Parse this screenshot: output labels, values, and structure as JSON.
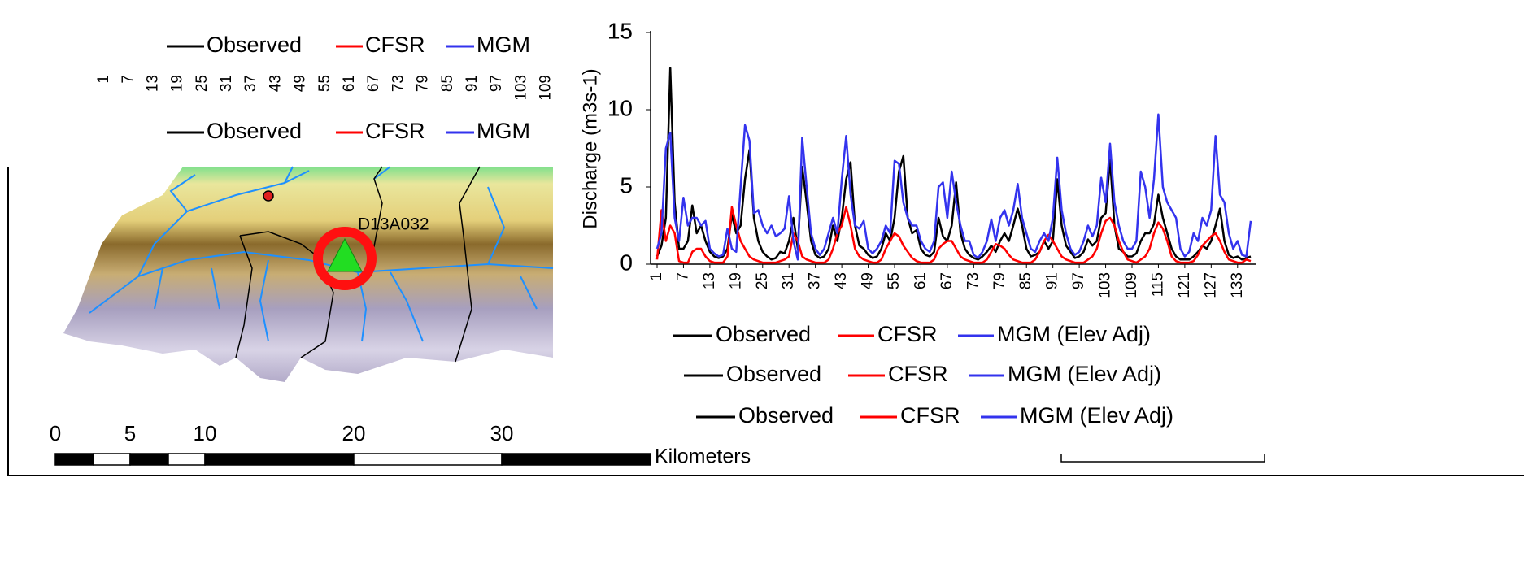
{
  "map_legends": [
    {
      "items": [
        "Observed",
        "CFSR",
        "MGM"
      ]
    },
    {
      "items": [
        "Observed",
        "CFSR",
        "MGM"
      ]
    }
  ],
  "ghost_tick_labels": [
    "1",
    "7",
    "13",
    "19",
    "25",
    "31",
    "37",
    "43",
    "49",
    "55",
    "61",
    "67",
    "73",
    "79",
    "85",
    "91",
    "97",
    "103",
    "109"
  ],
  "map": {
    "station_label": "D13A032",
    "scale_labels": [
      "0",
      "5",
      "10",
      "20",
      "30"
    ],
    "scale_unit": "Kilometers"
  },
  "chart_data": {
    "type": "line",
    "y_label": "Discharge (m3s-1)",
    "x": [
      1,
      2,
      3,
      4,
      5,
      6,
      7,
      8,
      9,
      10,
      11,
      12,
      13,
      14,
      15,
      16,
      17,
      18,
      19,
      20,
      21,
      22,
      23,
      24,
      25,
      26,
      27,
      28,
      29,
      30,
      31,
      32,
      33,
      34,
      35,
      36,
      37,
      38,
      39,
      40,
      41,
      42,
      43,
      44,
      45,
      46,
      47,
      48,
      49,
      50,
      51,
      52,
      53,
      54,
      55,
      56,
      57,
      58,
      59,
      60,
      61,
      62,
      63,
      64,
      65,
      66,
      67,
      68,
      69,
      70,
      71,
      72,
      73,
      74,
      75,
      76,
      77,
      78,
      79,
      80,
      81,
      82,
      83,
      84,
      85,
      86,
      87,
      88,
      89,
      90,
      91,
      92,
      93,
      94,
      95,
      96,
      97,
      98,
      99,
      100,
      101,
      102,
      103,
      104,
      105,
      106,
      107,
      108,
      109,
      110,
      111,
      112,
      113,
      114,
      115,
      116,
      117,
      118,
      119,
      120,
      121,
      122,
      123,
      124,
      125,
      126,
      127,
      128,
      129,
      130,
      131,
      132,
      133,
      134,
      135,
      136
    ],
    "xlim": [
      1,
      136
    ],
    "xticks": [
      1,
      7,
      13,
      19,
      25,
      31,
      37,
      43,
      49,
      55,
      61,
      67,
      73,
      79,
      85,
      91,
      97,
      103,
      109,
      115,
      121,
      127,
      133
    ],
    "ylim": [
      0,
      15
    ],
    "yticks": [
      0,
      5,
      10,
      15
    ],
    "series": [
      {
        "name": "Observed",
        "color": "#000000",
        "values": [
          0.5,
          1.2,
          3.0,
          12.7,
          4.0,
          1.0,
          1.0,
          1.5,
          3.8,
          2.0,
          2.5,
          1.5,
          0.8,
          0.5,
          0.4,
          0.5,
          1.0,
          3.2,
          2.0,
          2.5,
          5.5,
          7.4,
          3.0,
          1.5,
          0.8,
          0.5,
          0.3,
          0.4,
          0.8,
          0.7,
          1.5,
          3.0,
          1.0,
          6.3,
          4.0,
          1.5,
          0.6,
          0.4,
          0.5,
          1.0,
          2.5,
          1.5,
          3.0,
          5.5,
          6.6,
          2.5,
          1.2,
          1.0,
          0.6,
          0.4,
          0.5,
          1.0,
          2.0,
          1.5,
          3.0,
          6.0,
          7.0,
          3.0,
          2.0,
          2.2,
          1.0,
          0.6,
          0.5,
          0.8,
          3.0,
          1.8,
          1.5,
          2.5,
          5.3,
          2.0,
          1.0,
          0.6,
          0.4,
          0.3,
          0.5,
          0.8,
          1.2,
          0.8,
          1.5,
          2.0,
          1.5,
          2.5,
          3.6,
          2.5,
          1.0,
          0.5,
          0.6,
          0.8,
          1.5,
          1.0,
          1.5,
          5.5,
          2.5,
          1.2,
          0.8,
          0.4,
          0.5,
          0.8,
          1.6,
          1.2,
          1.5,
          3.0,
          3.3,
          6.8,
          2.5,
          1.0,
          0.8,
          0.5,
          0.5,
          0.7,
          1.5,
          2.0,
          2.0,
          2.6,
          4.5,
          3.0,
          2.0,
          1.0,
          0.5,
          0.3,
          0.3,
          0.3,
          0.5,
          0.8,
          1.2,
          1.0,
          1.5,
          2.5,
          3.6,
          1.5,
          0.6,
          0.4,
          0.5,
          0.3,
          0.4,
          0.5
        ]
      },
      {
        "name": "CFSR",
        "color": "#ff0000",
        "values": [
          0.3,
          3.5,
          1.5,
          2.5,
          2.0,
          0.2,
          0.1,
          0.1,
          0.8,
          1.0,
          1.0,
          0.5,
          0.2,
          0.1,
          0.1,
          0.1,
          0.5,
          3.7,
          2.5,
          1.5,
          1.0,
          0.5,
          0.3,
          0.2,
          0.1,
          0.1,
          0.1,
          0.1,
          0.2,
          0.3,
          0.5,
          2.0,
          1.5,
          0.5,
          0.3,
          0.2,
          0.1,
          0.1,
          0.1,
          0.3,
          1.0,
          2.0,
          2.5,
          3.7,
          2.5,
          1.0,
          0.5,
          0.3,
          0.2,
          0.1,
          0.1,
          0.3,
          1.0,
          1.5,
          2.0,
          1.8,
          1.2,
          0.8,
          0.4,
          0.2,
          0.1,
          0.1,
          0.1,
          0.3,
          1.0,
          1.3,
          1.5,
          1.5,
          1.0,
          0.5,
          0.3,
          0.2,
          0.1,
          0.1,
          0.1,
          0.3,
          0.8,
          1.3,
          1.2,
          1.0,
          0.6,
          0.3,
          0.2,
          0.1,
          0.1,
          0.1,
          0.3,
          0.8,
          1.5,
          1.9,
          1.5,
          1.0,
          0.5,
          0.3,
          0.2,
          0.1,
          0.1,
          0.1,
          0.3,
          0.5,
          1.0,
          2.0,
          2.8,
          3.0,
          2.5,
          1.5,
          0.8,
          0.3,
          0.2,
          0.1,
          0.3,
          0.5,
          1.0,
          2.0,
          2.7,
          2.3,
          1.5,
          0.5,
          0.2,
          0.1,
          0.1,
          0.1,
          0.2,
          0.6,
          1.2,
          1.5,
          1.8,
          2.0,
          1.5,
          0.8,
          0.3,
          0.2,
          0.1,
          0.1,
          0.3,
          0.2
        ]
      },
      {
        "name": "MGM (Elev Adj)",
        "color": "#3333ee",
        "values": [
          1.0,
          2.0,
          7.5,
          8.5,
          3.0,
          1.5,
          4.3,
          2.5,
          3.0,
          3.0,
          2.5,
          2.8,
          1.0,
          0.7,
          0.5,
          0.6,
          2.3,
          1.0,
          0.8,
          5.0,
          9.0,
          8.0,
          3.3,
          3.5,
          2.5,
          2.0,
          2.5,
          1.8,
          2.0,
          2.3,
          4.4,
          1.5,
          0.3,
          8.2,
          5.0,
          2.0,
          1.0,
          0.6,
          1.0,
          2.0,
          3.0,
          2.0,
          5.5,
          8.3,
          4.5,
          2.5,
          2.3,
          2.8,
          1.0,
          0.7,
          1.0,
          1.5,
          2.5,
          2.0,
          6.7,
          6.5,
          4.0,
          3.0,
          2.5,
          2.5,
          1.5,
          1.0,
          0.8,
          1.5,
          5.0,
          5.3,
          3.0,
          6.0,
          4.0,
          2.5,
          1.5,
          1.5,
          0.6,
          0.4,
          0.8,
          1.5,
          2.9,
          1.5,
          3.0,
          3.5,
          2.5,
          3.5,
          5.2,
          3.0,
          2.0,
          1.0,
          0.8,
          1.5,
          2.0,
          1.5,
          3.0,
          6.9,
          3.5,
          2.0,
          1.0,
          0.6,
          0.8,
          1.5,
          2.5,
          1.8,
          2.5,
          5.6,
          4.0,
          7.8,
          4.0,
          2.5,
          1.5,
          1.0,
          1.0,
          1.5,
          6.0,
          5.0,
          3.0,
          5.5,
          9.7,
          5.0,
          4.0,
          3.5,
          3.0,
          1.0,
          0.5,
          0.8,
          2.0,
          1.5,
          3.0,
          2.5,
          3.5,
          8.3,
          4.5,
          4.0,
          2.0,
          1.0,
          1.5,
          0.6,
          0.5,
          2.8
        ]
      }
    ]
  }
}
